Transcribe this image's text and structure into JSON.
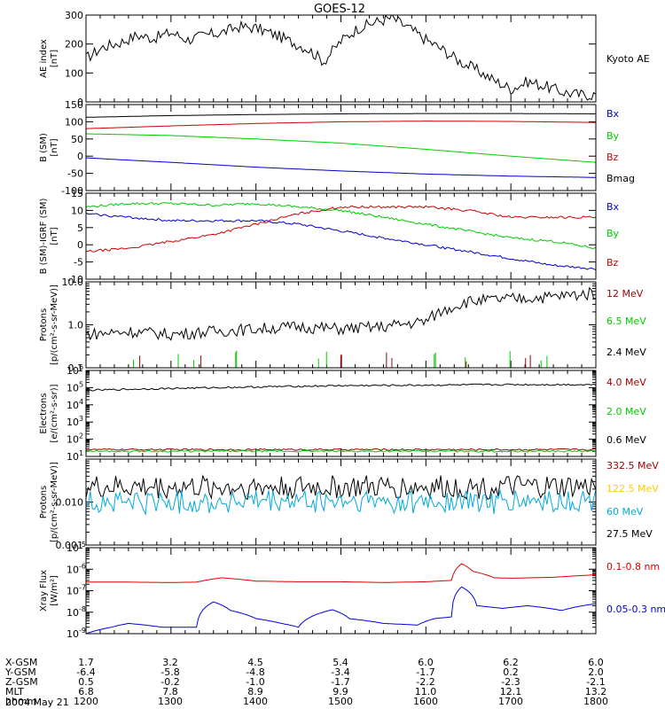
{
  "title": "GOES-12",
  "panels": [
    {
      "id": "ae",
      "ylabel": [
        "AE index",
        "[nT]"
      ],
      "scale": "linear",
      "ylim": [
        0,
        300
      ],
      "ticks": [
        0,
        100,
        200,
        300
      ],
      "tick_labels": [
        "0",
        "100",
        "200",
        "300"
      ],
      "legend": [
        {
          "label": "Kyoto AE",
          "color": "#000000"
        }
      ]
    },
    {
      "id": "bsm",
      "ylabel": [
        "B (SM)",
        "[nT]"
      ],
      "scale": "linear",
      "ylim": [
        -100,
        150
      ],
      "ticks": [
        -100,
        -50,
        0,
        50,
        100,
        150
      ],
      "tick_labels": [
        "-100",
        "-50",
        "0",
        "50",
        "100",
        "150"
      ],
      "legend": [
        {
          "label": "Bx",
          "color": "#0000cc"
        },
        {
          "label": "By",
          "color": "#00cc00"
        },
        {
          "label": "Bz",
          "color": "#cc0000"
        },
        {
          "label": "Bmag",
          "color": "#000000"
        }
      ]
    },
    {
      "id": "bigrf",
      "ylabel": [
        "B (SM)-IGRF (SM)",
        "[nT]"
      ],
      "scale": "linear",
      "ylim": [
        -10,
        15
      ],
      "ticks": [
        -10,
        -5,
        0,
        5,
        10,
        15
      ],
      "tick_labels": [
        "-10",
        "-5",
        "0",
        "5",
        "10",
        "15"
      ],
      "legend": [
        {
          "label": "Bx",
          "color": "#0000cc"
        },
        {
          "label": "By",
          "color": "#00cc00"
        },
        {
          "label": "Bz",
          "color": "#cc0000"
        }
      ]
    },
    {
      "id": "protons1",
      "ylabel": [
        "Protons",
        "[p/(cm²-s-sr-MeV)]"
      ],
      "scale": "log",
      "ylim": [
        0.1,
        10
      ],
      "ticks": [
        0.1,
        1,
        10
      ],
      "tick_labels": [
        "0.1",
        "1.0",
        "10.0"
      ],
      "legend": [
        {
          "label": "12 MeV",
          "color": "#990000"
        },
        {
          "label": "6.5 MeV",
          "color": "#00cc00"
        },
        {
          "label": "2.4 MeV",
          "color": "#000000"
        }
      ]
    },
    {
      "id": "electrons",
      "ylabel": [
        "Electrons",
        "[e/(cm²-s-sr)]"
      ],
      "scale": "log",
      "ylim": [
        10,
        1000000
      ],
      "ticks": [
        10,
        100,
        1000,
        10000,
        100000,
        1000000
      ],
      "tick_labels": [
        "10",
        "10",
        "10",
        "10",
        "10",
        "10"
      ],
      "tick_exps": [
        "1",
        "2",
        "3",
        "4",
        "5",
        "6"
      ],
      "legend": [
        {
          "label": "4.0 MeV",
          "color": "#990000"
        },
        {
          "label": "2.0 MeV",
          "color": "#00cc00"
        },
        {
          "label": "0.6 MeV",
          "color": "#000000"
        }
      ]
    },
    {
      "id": "protons2",
      "ylabel": [
        "Protons",
        "[p/(cm²-s-sr-MeV)]"
      ],
      "scale": "log",
      "ylim": [
        0.001,
        0.1
      ],
      "ticks": [
        0.001,
        0.01
      ],
      "tick_labels": [
        "0.001",
        "0.010"
      ],
      "legend": [
        {
          "label": "332.5 MeV",
          "color": "#990000"
        },
        {
          "label": "122.5 MeV",
          "color": "#ffcc00"
        },
        {
          "label": "60 MeV",
          "color": "#00aadd"
        },
        {
          "label": "27.5 MeV",
          "color": "#000000"
        }
      ]
    },
    {
      "id": "xray",
      "ylabel": [
        "Xray Flux",
        "[W/m²]"
      ],
      "scale": "log",
      "ylim": [
        1e-09,
        1e-05
      ],
      "ticks": [
        1e-09,
        1e-08,
        1e-07,
        1e-06,
        1e-05
      ],
      "tick_labels": [
        "10",
        "10",
        "10",
        "10",
        "10"
      ],
      "tick_exps": [
        "-9",
        "-8",
        "-7",
        "-6",
        "-5"
      ],
      "legend": [
        {
          "label": "0.1-0.8 nm",
          "color": "#dd0000"
        },
        {
          "label": "0.05-0.3 nm",
          "color": "#0000dd"
        }
      ]
    }
  ],
  "footer": {
    "row_labels": [
      "X-GSM",
      "Y-GSM",
      "Z-GSM",
      "MLT",
      "hhmm"
    ],
    "columns": [
      [
        "1.7",
        "-6.4",
        "0.5",
        "6.8",
        "1200"
      ],
      [
        "3.2",
        "-5.8",
        "-0.2",
        "7.8",
        "1300"
      ],
      [
        "4.5",
        "-4.8",
        "-1.0",
        "8.9",
        "1400"
      ],
      [
        "5.4",
        "-3.4",
        "-1.7",
        "9.9",
        "1500"
      ],
      [
        "6.0",
        "-1.7",
        "-2.2",
        "11.0",
        "1600"
      ],
      [
        "6.2",
        "0.2",
        "-2.3",
        "12.1",
        "1700"
      ],
      [
        "6.0",
        "2.0",
        "-2.1",
        "13.2",
        "1800"
      ]
    ],
    "date": "2004 May 21"
  },
  "chart_data": [
    {
      "type": "line",
      "panel": "ae",
      "title": "GOES-12",
      "ylabel": "AE index [nT]",
      "xlabel": "",
      "ylim": [
        0,
        300
      ],
      "xlim": [
        12,
        18
      ],
      "series": [
        {
          "name": "Kyoto AE",
          "color": "#000000",
          "x": [
            12.0,
            12.2,
            12.4,
            12.6,
            12.8,
            13.0,
            13.2,
            13.4,
            13.6,
            13.8,
            14.0,
            14.2,
            14.4,
            14.6,
            14.8,
            15.0,
            15.2,
            15.4,
            15.6,
            15.8,
            16.0,
            16.2,
            16.4,
            16.6,
            16.8,
            17.0,
            17.2,
            17.4,
            17.6,
            17.8,
            18.0
          ],
          "y": [
            150,
            190,
            205,
            230,
            220,
            240,
            215,
            230,
            240,
            260,
            255,
            235,
            210,
            185,
            140,
            210,
            255,
            275,
            290,
            255,
            215,
            180,
            140,
            110,
            75,
            45,
            70,
            55,
            35,
            25,
            25
          ]
        }
      ]
    },
    {
      "type": "line",
      "panel": "bsm",
      "ylabel": "B (SM) [nT]",
      "ylim": [
        -100,
        150
      ],
      "xlim": [
        12,
        18
      ],
      "series": [
        {
          "name": "Bmag",
          "color": "#000000",
          "x": [
            12,
            13,
            14,
            15,
            16,
            17,
            18
          ],
          "y": [
            113,
            118,
            121,
            123,
            124,
            124,
            123
          ]
        },
        {
          "name": "Bz",
          "color": "#cc0000",
          "x": [
            12,
            13,
            14,
            15,
            16,
            17,
            18
          ],
          "y": [
            80,
            88,
            95,
            100,
            102,
            101,
            98
          ]
        },
        {
          "name": "By",
          "color": "#00cc00",
          "x": [
            12,
            13,
            14,
            15,
            16,
            17,
            18
          ],
          "y": [
            65,
            60,
            50,
            38,
            20,
            0,
            -18
          ]
        },
        {
          "name": "Bx",
          "color": "#0000cc",
          "x": [
            12,
            13,
            14,
            15,
            16,
            17,
            18
          ],
          "y": [
            -5,
            -18,
            -32,
            -43,
            -52,
            -58,
            -62
          ]
        }
      ]
    },
    {
      "type": "line",
      "panel": "bigrf",
      "ylabel": "B (SM)-IGRF (SM) [nT]",
      "ylim": [
        -10,
        15
      ],
      "xlim": [
        12,
        18
      ],
      "series": [
        {
          "name": "By",
          "color": "#00cc00",
          "x": [
            12,
            12.5,
            13,
            13.5,
            14,
            14.5,
            15,
            15.5,
            16,
            16.5,
            17,
            17.5,
            18
          ],
          "y": [
            11,
            12,
            12,
            11.5,
            12,
            11,
            10,
            8,
            6,
            4,
            2,
            1,
            -1
          ]
        },
        {
          "name": "Bz",
          "color": "#cc0000",
          "x": [
            12,
            12.5,
            13,
            13.5,
            14,
            14.5,
            15,
            15.5,
            16,
            16.5,
            17,
            17.5,
            18
          ],
          "y": [
            -2,
            -1,
            1,
            3,
            6,
            9,
            11,
            11,
            11,
            10,
            8,
            8,
            8
          ]
        },
        {
          "name": "Bx",
          "color": "#0000cc",
          "x": [
            12,
            12.5,
            13,
            13.5,
            14,
            14.5,
            15,
            15.5,
            16,
            16.5,
            17,
            17.5,
            18
          ],
          "y": [
            9,
            8,
            7,
            7,
            7,
            6,
            4,
            2,
            0,
            -2,
            -4,
            -6,
            -7
          ]
        }
      ]
    },
    {
      "type": "line",
      "panel": "protons1",
      "ylabel": "Protons [p/(cm2-s-sr-MeV)]",
      "ylim": [
        0.1,
        10
      ],
      "xlim": [
        12,
        18
      ],
      "yscale": "log",
      "series": [
        {
          "name": "2.4 MeV",
          "color": "#000000",
          "x": [
            12,
            12.5,
            13,
            13.5,
            14,
            14.5,
            15,
            15.5,
            16,
            16.5,
            17,
            17.5,
            18
          ],
          "y": [
            0.6,
            0.7,
            0.6,
            0.7,
            0.8,
            0.9,
            0.8,
            0.9,
            1.2,
            3.5,
            4,
            4.5,
            5.5
          ]
        }
      ]
    },
    {
      "type": "line",
      "panel": "electrons",
      "ylabel": "Electrons [e/(cm2-s-sr)]",
      "ylim": [
        10,
        1000000
      ],
      "xlim": [
        12,
        18
      ],
      "yscale": "log",
      "series": [
        {
          "name": "0.6 MeV",
          "color": "#000000",
          "x": [
            12,
            13,
            14,
            15,
            16,
            17,
            18
          ],
          "y": [
            70000,
            90000,
            110000,
            130000,
            140000,
            150000,
            150000
          ]
        },
        {
          "name": "4.0 MeV",
          "color": "#990000",
          "x": [
            12,
            18
          ],
          "y": [
            25,
            25
          ]
        },
        {
          "name": "2.0 MeV",
          "color": "#00cc00",
          "x": [
            12,
            18
          ],
          "y": [
            20,
            20
          ]
        }
      ]
    },
    {
      "type": "line",
      "panel": "protons2",
      "ylabel": "Protons [p/(cm2-s-sr-MeV)]",
      "ylim": [
        0.001,
        0.1
      ],
      "xlim": [
        12,
        18
      ],
      "yscale": "log",
      "series": [
        {
          "name": "27.5 MeV",
          "color": "#000000",
          "x": [
            12,
            18
          ],
          "y": [
            0.022,
            0.022
          ]
        },
        {
          "name": "60 MeV",
          "color": "#00aadd",
          "x": [
            12,
            18
          ],
          "y": [
            0.01,
            0.01
          ]
        }
      ]
    },
    {
      "type": "line",
      "panel": "xray",
      "ylabel": "Xray Flux [W/m2]",
      "ylim": [
        1e-09,
        1e-05
      ],
      "xlim": [
        12,
        18
      ],
      "yscale": "log",
      "series": [
        {
          "name": "0.1-0.8 nm",
          "color": "#dd0000",
          "x": [
            12,
            12.5,
            13,
            13.3,
            13.6,
            14,
            14.5,
            15,
            15.5,
            16,
            16.3,
            16.42,
            16.55,
            16.8,
            17,
            17.5,
            18
          ],
          "y": [
            2.5e-07,
            2.5e-07,
            2.4e-07,
            2.5e-07,
            4e-07,
            2.8e-07,
            2.6e-07,
            2.6e-07,
            2.4e-07,
            2.6e-07,
            3e-07,
            1.8e-06,
            8e-07,
            4e-07,
            3.8e-07,
            4.2e-07,
            5.5e-07
          ]
        },
        {
          "name": "0.05-0.3 nm",
          "color": "#0000dd",
          "x": [
            12,
            12.3,
            12.5,
            12.9,
            13.3,
            13.5,
            13.7,
            14.0,
            14.3,
            14.5,
            14.9,
            15.1,
            15.5,
            15.9,
            16.1,
            16.3,
            16.42,
            16.6,
            16.9,
            17.2,
            17.6,
            18
          ],
          "y": [
            1e-09,
            2e-09,
            3e-09,
            2e-09,
            2e-09,
            3e-08,
            1.2e-08,
            5e-09,
            3e-09,
            2e-09,
            1.3e-08,
            5e-09,
            3e-09,
            2.5e-09,
            5e-09,
            6e-09,
            1.5e-07,
            2e-08,
            1.5e-08,
            2e-08,
            1.2e-08,
            2.5e-08
          ]
        }
      ]
    }
  ]
}
